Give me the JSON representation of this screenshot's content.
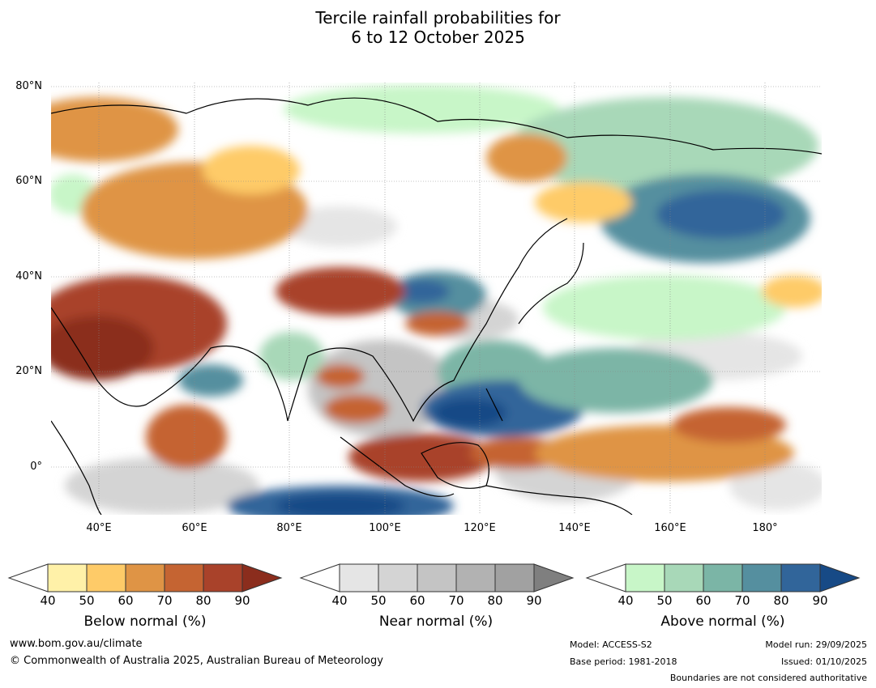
{
  "title_line1": "Tercile rainfall probabilities for",
  "title_line2": "6 to 12 October 2025",
  "lat_labels": [
    "80°N",
    "60°N",
    "40°N",
    "20°N",
    "0°"
  ],
  "lon_labels": [
    "40°E",
    "60°E",
    "80°E",
    "100°E",
    "120°E",
    "140°E",
    "160°E",
    "180°"
  ],
  "colorbars": [
    {
      "title": "Below normal (%)",
      "ticks": [
        "40",
        "50",
        "60",
        "70",
        "80",
        "90"
      ],
      "colors": [
        "#fff1a8",
        "#fecb68",
        "#df9445",
        "#c56432",
        "#a9422a",
        "#8b2d1d"
      ]
    },
    {
      "title": "Near normal (%)",
      "ticks": [
        "40",
        "50",
        "60",
        "70",
        "80",
        "90"
      ],
      "colors": [
        "#e5e5e5",
        "#d4d4d4",
        "#c4c4c4",
        "#b2b2b2",
        "#a1a1a1",
        "#7f7f7f"
      ]
    },
    {
      "title": "Above normal (%)",
      "ticks": [
        "40",
        "50",
        "60",
        "70",
        "80",
        "90"
      ],
      "colors": [
        "#c8f6c8",
        "#a8d8b8",
        "#7bb5a6",
        "#558f9f",
        "#31659a",
        "#174a86"
      ]
    }
  ],
  "footer": {
    "website": "www.bom.gov.au/climate",
    "copyright": "© Commonwealth of Australia 2025, Australian Bureau of Meteorology",
    "model": "Model: ACCESS-S2",
    "base_period": "Base period: 1981-2018",
    "model_run": "Model run: 29/09/2025",
    "issued": "Issued: 01/10/2025",
    "disclaimer": "Boundaries are not considered authoritative"
  }
}
